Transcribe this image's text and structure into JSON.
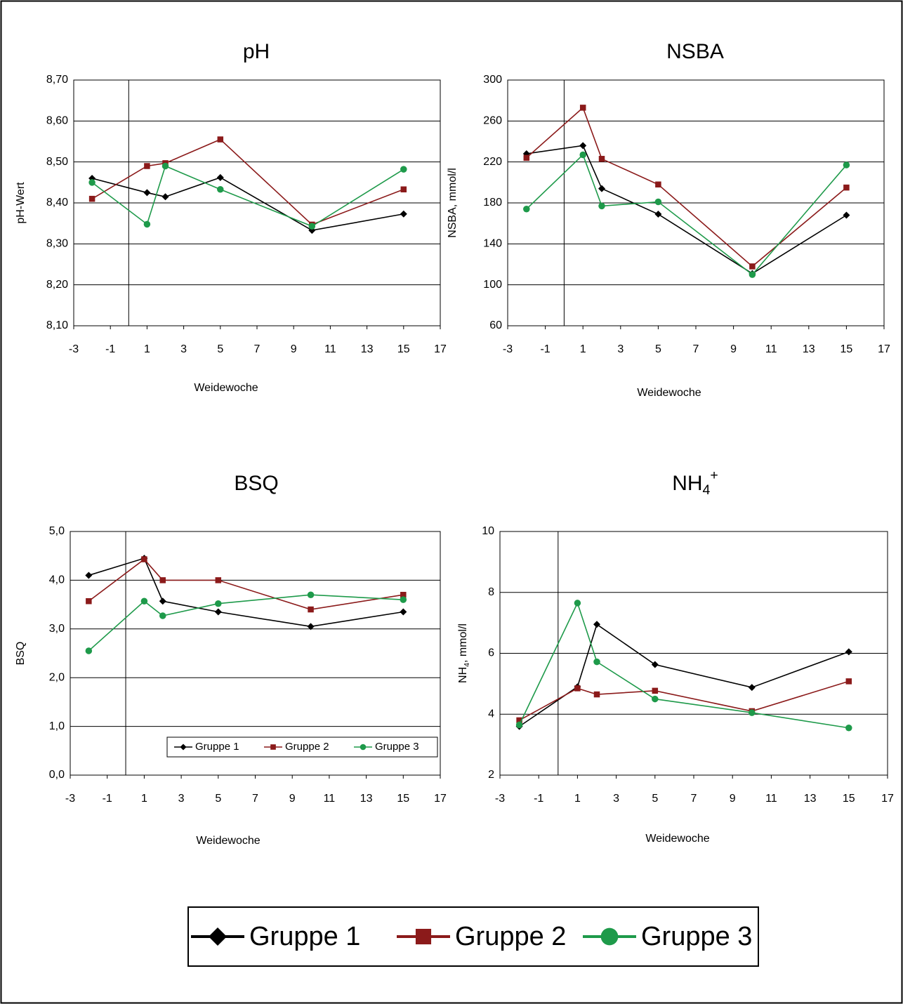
{
  "chart_data": [
    {
      "type": "line",
      "title": [
        {
          "text": "pH"
        }
      ],
      "ylabel": "pH-Wert",
      "xlabel": "Weidewoche",
      "x": [
        -2,
        1,
        2,
        5,
        10,
        15
      ],
      "xlim": [
        -3,
        17
      ],
      "xticks": [
        -3,
        -1,
        1,
        3,
        5,
        7,
        9,
        11,
        13,
        15,
        17
      ],
      "ylim": [
        8.1,
        8.7
      ],
      "yticks": [
        {
          "value": 8.1,
          "label": "8,10"
        },
        {
          "value": 8.2,
          "label": "8,20"
        },
        {
          "value": 8.3,
          "label": "8,30"
        },
        {
          "value": 8.4,
          "label": "8,40"
        },
        {
          "value": 8.5,
          "label": "8,50"
        },
        {
          "value": 8.6,
          "label": "8,60"
        },
        {
          "value": 8.7,
          "label": "8,70"
        }
      ],
      "y_axis_crosses": 0,
      "grid": true,
      "legend": false,
      "series": [
        {
          "name": "Gruppe 1",
          "color": "#000000",
          "marker": "diamond",
          "values": [
            8.46,
            8.425,
            8.415,
            8.462,
            8.333,
            8.373
          ]
        },
        {
          "name": "Gruppe 2",
          "color": "#8b1a1a",
          "marker": "square",
          "values": [
            8.41,
            8.49,
            8.497,
            8.555,
            8.347,
            8.433
          ]
        },
        {
          "name": "Gruppe 3",
          "color": "#1e9a4a",
          "marker": "circle",
          "values": [
            8.45,
            8.348,
            8.49,
            8.433,
            8.343,
            8.482
          ]
        }
      ]
    },
    {
      "type": "line",
      "title": [
        {
          "text": "NSBA"
        }
      ],
      "ylabel": [
        {
          "text": "NSBA, mmol/l"
        }
      ],
      "xlabel": "Weidewoche",
      "x": [
        -2,
        1,
        2,
        5,
        10,
        15
      ],
      "xlim": [
        -3,
        17
      ],
      "xticks": [
        -3,
        -1,
        1,
        3,
        5,
        7,
        9,
        11,
        13,
        15,
        17
      ],
      "ylim": [
        60,
        300
      ],
      "yticks": [
        60,
        100,
        140,
        180,
        220,
        260,
        300
      ],
      "y_axis_crosses": 0,
      "grid": true,
      "legend": false,
      "series": [
        {
          "name": "Gruppe 1",
          "color": "#000000",
          "marker": "diamond",
          "values": [
            228,
            236,
            194,
            169,
            111,
            168
          ]
        },
        {
          "name": "Gruppe 2",
          "color": "#8b1a1a",
          "marker": "square",
          "values": [
            224,
            273,
            223,
            198,
            118,
            195
          ]
        },
        {
          "name": "Gruppe 3",
          "color": "#1e9a4a",
          "marker": "circle",
          "values": [
            174,
            227,
            177,
            181,
            110,
            217
          ]
        }
      ]
    },
    {
      "type": "line",
      "title": [
        {
          "text": "BSQ"
        }
      ],
      "ylabel": "BSQ",
      "xlabel": "Weidewoche",
      "x": [
        -2,
        1,
        2,
        5,
        10,
        15
      ],
      "xlim": [
        -3,
        17
      ],
      "xticks": [
        -3,
        -1,
        1,
        3,
        5,
        7,
        9,
        11,
        13,
        15,
        17
      ],
      "ylim": [
        0,
        5
      ],
      "yticks": [
        {
          "value": 0,
          "label": "0,0"
        },
        {
          "value": 1,
          "label": "1,0"
        },
        {
          "value": 2,
          "label": "2,0"
        },
        {
          "value": 3,
          "label": "3,0"
        },
        {
          "value": 4,
          "label": "4,0"
        },
        {
          "value": 5,
          "label": "5,0"
        }
      ],
      "y_axis_crosses": 0,
      "grid": true,
      "legend": "lower right",
      "series": [
        {
          "name": "Gruppe 1",
          "color": "#000000",
          "marker": "diamond",
          "values": [
            4.1,
            4.45,
            3.57,
            3.35,
            3.05,
            3.35
          ]
        },
        {
          "name": "Gruppe 2",
          "color": "#8b1a1a",
          "marker": "square",
          "values": [
            3.57,
            4.43,
            4.0,
            4.0,
            3.4,
            3.7
          ]
        },
        {
          "name": "Gruppe 3",
          "color": "#1e9a4a",
          "marker": "circle",
          "values": [
            2.55,
            3.57,
            3.27,
            3.52,
            3.7,
            3.6
          ]
        }
      ]
    },
    {
      "type": "line",
      "title": [
        {
          "text": "NH"
        },
        {
          "text": "4",
          "style": "sub"
        },
        {
          "text": "+",
          "style": "sup"
        }
      ],
      "ylabel": [
        {
          "text": "NH"
        },
        {
          "text": "4",
          "style": "sub"
        },
        {
          "text": ", mmol/l"
        }
      ],
      "xlabel": "Weidewoche",
      "x": [
        -2,
        1,
        2,
        5,
        10,
        15
      ],
      "xlim": [
        -3,
        17
      ],
      "xticks": [
        -3,
        -1,
        1,
        3,
        5,
        7,
        9,
        11,
        13,
        15,
        17
      ],
      "ylim": [
        2,
        10
      ],
      "yticks": [
        2,
        4,
        6,
        8,
        10
      ],
      "y_axis_crosses": 0,
      "grid": true,
      "legend": false,
      "series": [
        {
          "name": "Gruppe 1",
          "color": "#000000",
          "marker": "diamond",
          "values": [
            3.6,
            4.9,
            6.95,
            5.63,
            4.88,
            6.05
          ]
        },
        {
          "name": "Gruppe 2",
          "color": "#8b1a1a",
          "marker": "square",
          "values": [
            3.8,
            4.85,
            4.65,
            4.77,
            4.1,
            5.08
          ]
        },
        {
          "name": "Gruppe 3",
          "color": "#1e9a4a",
          "marker": "circle",
          "values": [
            3.65,
            7.65,
            5.72,
            4.5,
            4.05,
            3.55
          ]
        }
      ]
    }
  ]
}
